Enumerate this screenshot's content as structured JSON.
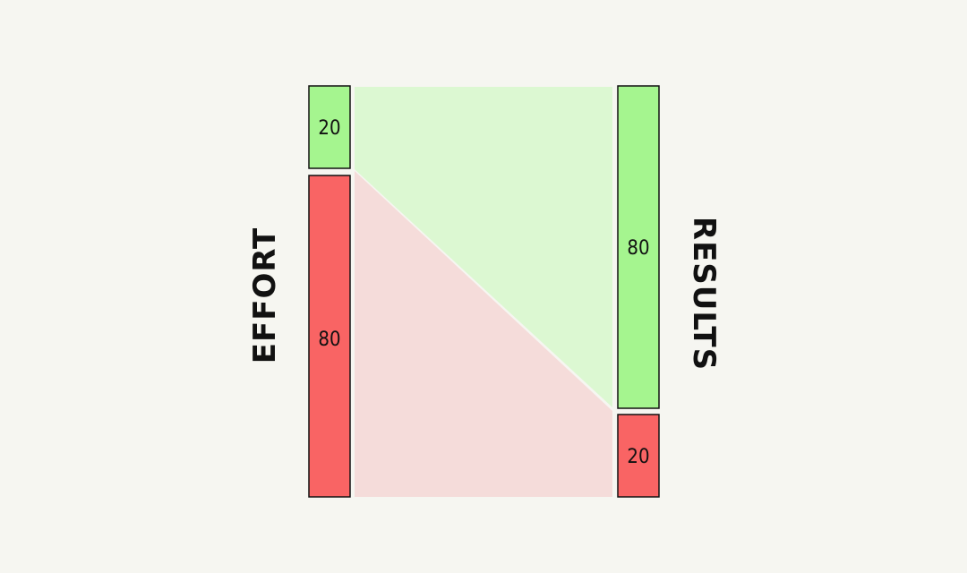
{
  "colors": {
    "background": "#f6f6f1",
    "green": "#a5f58f",
    "red": "#f96464",
    "green_fill": "#dcf8d2",
    "red_fill": "#f5dcda",
    "outline": "#111111"
  },
  "labels": {
    "left_axis": "EFFORT",
    "right_axis": "RESULTS"
  },
  "effort": {
    "top_value": "20",
    "bottom_value": "80"
  },
  "results": {
    "top_value": "80",
    "bottom_value": "20"
  }
}
